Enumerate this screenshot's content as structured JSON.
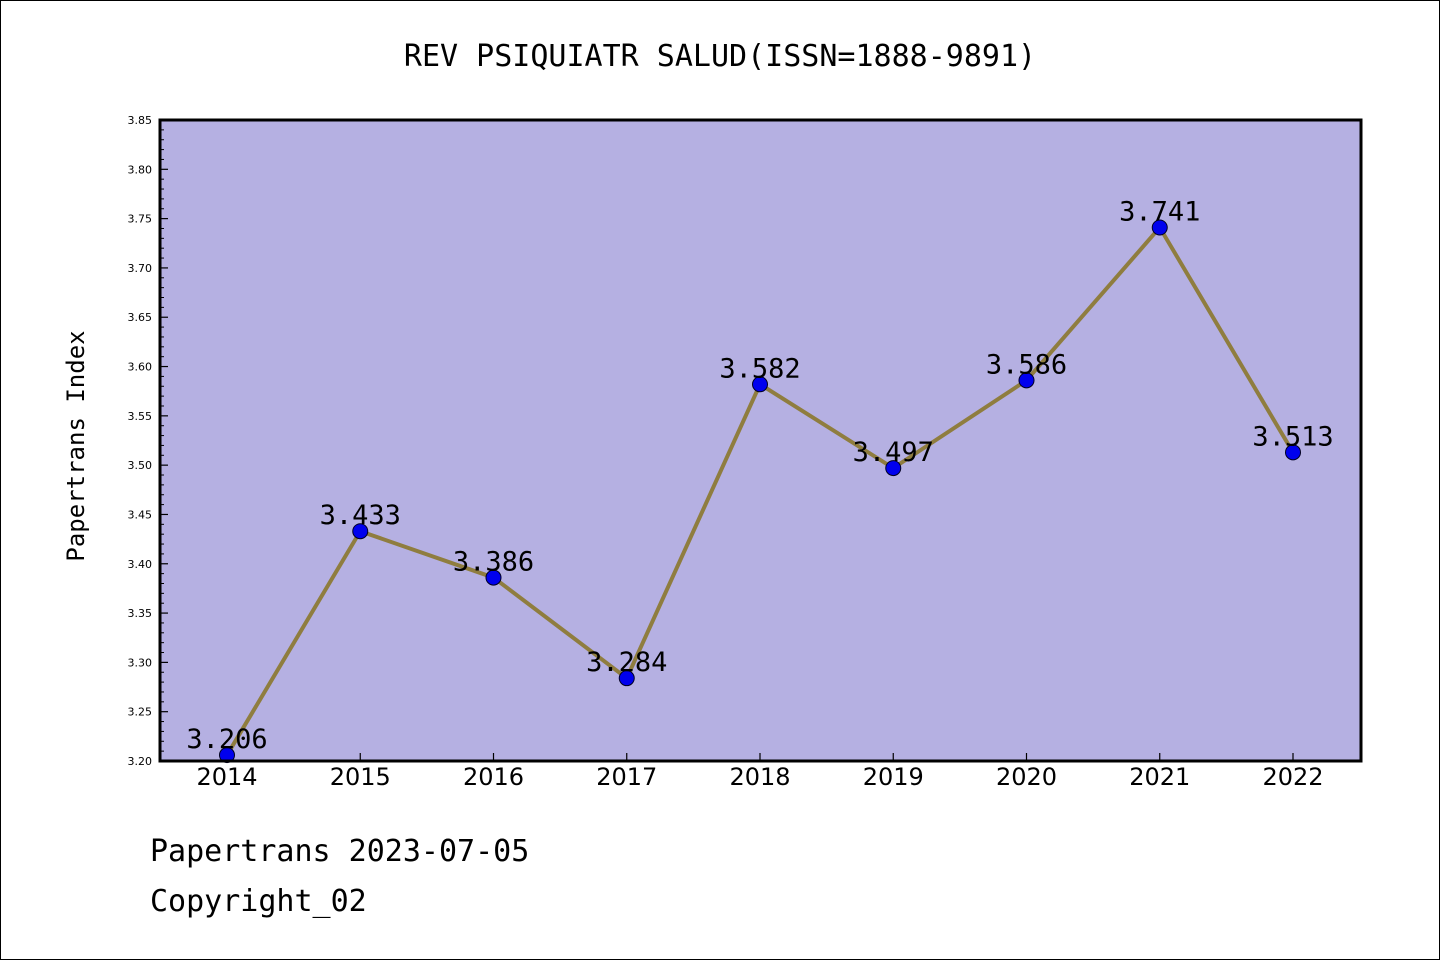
{
  "chart_data": {
    "type": "line",
    "title": "REV PSIQUIATR SALUD(ISSN=1888-9891)",
    "ylabel": "Papertrans Index",
    "xlabel": "",
    "categories": [
      "2014",
      "2015",
      "2016",
      "2017",
      "2018",
      "2019",
      "2020",
      "2021",
      "2022"
    ],
    "series": [
      {
        "values": [
          3.206,
          3.433,
          3.386,
          3.284,
          3.582,
          3.497,
          3.586,
          3.741,
          3.513
        ]
      }
    ],
    "data_labels": [
      "3.206",
      "3.433",
      "3.386",
      "3.284",
      "3.582",
      "3.497",
      "3.586",
      "3.741",
      "3.513"
    ],
    "ylim": [
      3.2,
      3.85
    ],
    "yticks": [
      "3.20",
      "3.25",
      "3.30",
      "3.35",
      "3.40",
      "3.45",
      "3.50",
      "3.55",
      "3.60",
      "3.65",
      "3.70",
      "3.75",
      "3.80",
      "3.85"
    ],
    "grid": false,
    "legend": "none",
    "colors": {
      "plot_background": "#b5b0e2",
      "line": "#8f7d3f",
      "marker": "#0000ee"
    }
  },
  "footer": {
    "line1": "Papertrans 2023-07-05",
    "line2": "Copyright_02"
  }
}
